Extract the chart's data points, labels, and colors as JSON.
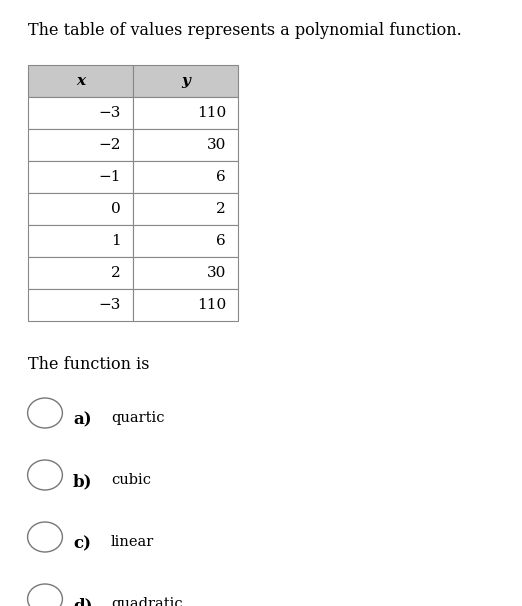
{
  "title": "The table of values represents a polynomial function.",
  "table_headers": [
    "x",
    "y"
  ],
  "table_data": [
    [
      "−3",
      "110"
    ],
    [
      "−2",
      "30"
    ],
    [
      "−1",
      "6"
    ],
    [
      "0",
      "2"
    ],
    [
      "1",
      "6"
    ],
    [
      "2",
      "30"
    ],
    [
      "−3",
      "110"
    ]
  ],
  "question": "The function is",
  "options": [
    {
      "label": "a)",
      "text": "quartic"
    },
    {
      "label": "b)",
      "text": "cubic"
    },
    {
      "label": "c)",
      "text": "linear"
    },
    {
      "label": "d)",
      "text": "quadratic"
    }
  ],
  "header_bg": "#c8c8c8",
  "table_border_color": "#888888",
  "cell_bg": "#ffffff",
  "title_fontsize": 11.5,
  "table_fontsize": 11,
  "question_fontsize": 11.5,
  "option_label_fontsize": 12,
  "option_text_fontsize": 10.5,
  "bg_color": "#ffffff",
  "text_color": "#000000"
}
